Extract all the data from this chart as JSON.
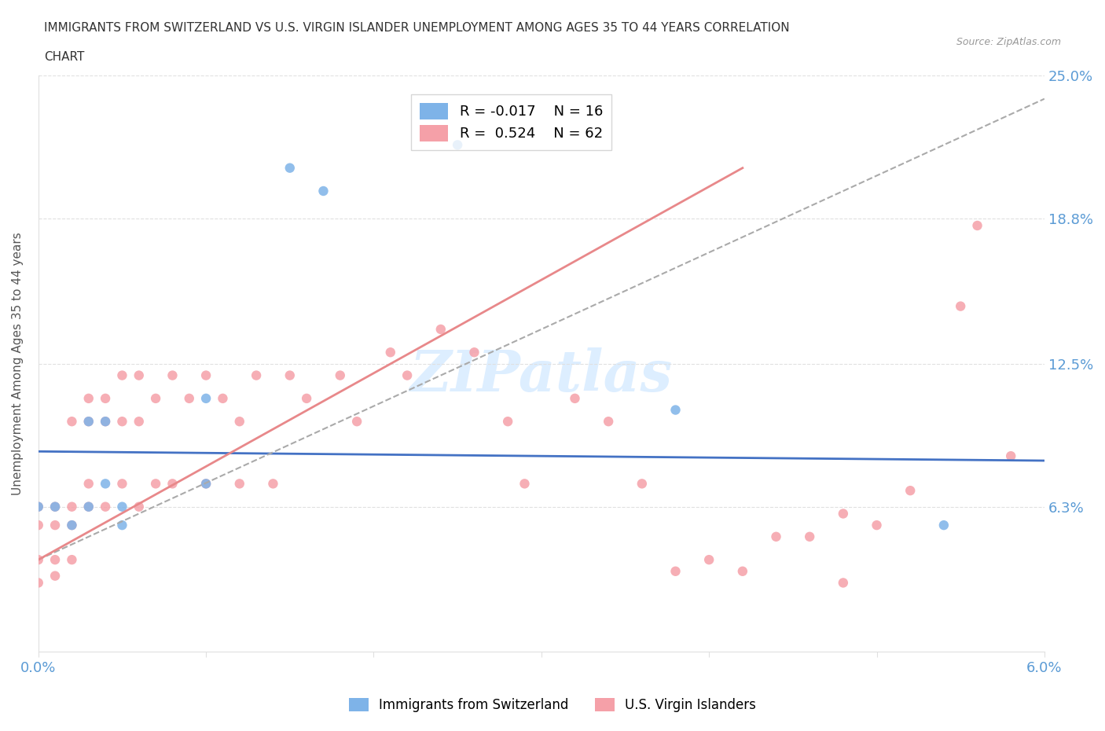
{
  "title_line1": "IMMIGRANTS FROM SWITZERLAND VS U.S. VIRGIN ISLANDER UNEMPLOYMENT AMONG AGES 35 TO 44 YEARS CORRELATION",
  "title_line2": "CHART",
  "source_text": "Source: ZipAtlas.com",
  "xlabel": "",
  "ylabel": "Unemployment Among Ages 35 to 44 years",
  "xlim": [
    0.0,
    0.06
  ],
  "ylim": [
    0.0,
    0.25
  ],
  "xtick_labels": [
    "0.0%",
    "",
    "",
    "",
    "",
    "",
    "6.0%"
  ],
  "ytick_labels": [
    "25.0%",
    "18.8%",
    "12.5%",
    "6.3%",
    ""
  ],
  "ytick_vals": [
    0.25,
    0.188,
    0.125,
    0.063,
    0.0
  ],
  "xtick_vals": [
    0.0,
    0.01,
    0.02,
    0.03,
    0.04,
    0.05,
    0.06
  ],
  "legend_r1": "R = -0.017",
  "legend_n1": "N = 16",
  "legend_r2": "R =  0.524",
  "legend_n2": "N = 62",
  "color_blue": "#7EB3E8",
  "color_pink": "#F5A0A8",
  "color_trendline_blue": "#4472C4",
  "color_trendline_pink": "#E8888A",
  "color_trendline_pink_dashed": "#AAAAAA",
  "color_axis": "#AAAAAA",
  "color_ytick_labels": "#5B9BD5",
  "color_xtick_labels": "#5B9BD5",
  "watermark_text": "ZIPatlas",
  "watermark_color": "#DDEEFF",
  "blue_scatter_x": [
    0.0,
    0.001,
    0.002,
    0.003,
    0.003,
    0.004,
    0.004,
    0.005,
    0.005,
    0.01,
    0.01,
    0.015,
    0.017,
    0.025,
    0.038,
    0.054
  ],
  "blue_scatter_y": [
    0.063,
    0.063,
    0.055,
    0.063,
    0.1,
    0.1,
    0.073,
    0.055,
    0.063,
    0.073,
    0.11,
    0.21,
    0.2,
    0.22,
    0.105,
    0.055
  ],
  "pink_scatter_x": [
    0.0,
    0.0,
    0.0,
    0.0,
    0.001,
    0.001,
    0.001,
    0.001,
    0.002,
    0.002,
    0.002,
    0.002,
    0.003,
    0.003,
    0.003,
    0.003,
    0.004,
    0.004,
    0.004,
    0.005,
    0.005,
    0.005,
    0.006,
    0.006,
    0.006,
    0.007,
    0.007,
    0.008,
    0.008,
    0.009,
    0.01,
    0.01,
    0.011,
    0.012,
    0.012,
    0.013,
    0.014,
    0.015,
    0.016,
    0.018,
    0.019,
    0.021,
    0.022,
    0.024,
    0.026,
    0.028,
    0.029,
    0.032,
    0.034,
    0.036,
    0.038,
    0.04,
    0.042,
    0.044,
    0.046,
    0.048,
    0.05,
    0.052,
    0.055,
    0.056,
    0.058,
    0.048
  ],
  "pink_scatter_y": [
    0.063,
    0.055,
    0.04,
    0.03,
    0.063,
    0.055,
    0.04,
    0.033,
    0.1,
    0.063,
    0.055,
    0.04,
    0.11,
    0.1,
    0.073,
    0.063,
    0.11,
    0.1,
    0.063,
    0.12,
    0.1,
    0.073,
    0.12,
    0.1,
    0.063,
    0.11,
    0.073,
    0.12,
    0.073,
    0.11,
    0.12,
    0.073,
    0.11,
    0.1,
    0.073,
    0.12,
    0.073,
    0.12,
    0.11,
    0.12,
    0.1,
    0.13,
    0.12,
    0.14,
    0.13,
    0.1,
    0.073,
    0.11,
    0.1,
    0.073,
    0.035,
    0.04,
    0.035,
    0.05,
    0.05,
    0.06,
    0.055,
    0.07,
    0.15,
    0.185,
    0.085,
    0.03
  ],
  "blue_trend_x": [
    0.0,
    0.06
  ],
  "blue_trend_y": [
    0.087,
    0.083
  ],
  "pink_trend_x": [
    0.0,
    0.06
  ],
  "pink_trend_y": [
    0.04,
    0.24
  ],
  "grid_color": "#E0E0E0",
  "background_color": "#FFFFFF"
}
